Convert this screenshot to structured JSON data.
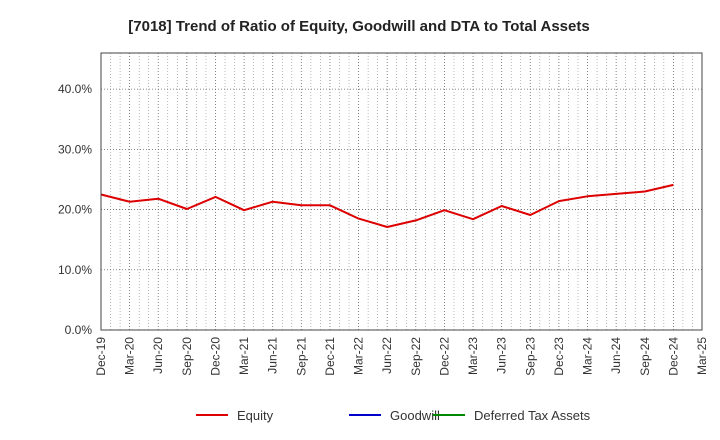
{
  "chart_data": {
    "type": "line",
    "title": "[7018]  Trend of Ratio of Equity, Goodwill and DTA to Total Assets",
    "xlabel": "",
    "ylabel": "",
    "ylim": [
      0,
      46
    ],
    "y_ticks": [
      0,
      10,
      20,
      30,
      40
    ],
    "y_tick_labels": [
      "0.0%",
      "10.0%",
      "20.0%",
      "30.0%",
      "40.0%"
    ],
    "grid": true,
    "legend_position": "bottom",
    "categories": [
      "Dec-19",
      "Mar-20",
      "Jun-20",
      "Sep-20",
      "Dec-20",
      "Mar-21",
      "Jun-21",
      "Sep-21",
      "Dec-21",
      "Mar-22",
      "Jun-22",
      "Sep-22",
      "Dec-22",
      "Mar-23",
      "Jun-23",
      "Sep-23",
      "Dec-23",
      "Mar-24",
      "Jun-24",
      "Sep-24",
      "Dec-24",
      "Mar-25"
    ],
    "series": [
      {
        "name": "Equity",
        "color": "#dd0000",
        "values": [
          22.5,
          21.3,
          21.8,
          20.1,
          22.1,
          19.9,
          21.3,
          20.7,
          20.7,
          18.5,
          17.1,
          18.2,
          19.9,
          18.4,
          20.6,
          19.1,
          21.4,
          22.2,
          22.6,
          23.0,
          24.1,
          null
        ]
      },
      {
        "name": "Goodwill",
        "color": "#0000cc",
        "values": [
          null,
          null,
          null,
          null,
          null,
          null,
          null,
          null,
          null,
          null,
          null,
          null,
          null,
          null,
          null,
          null,
          null,
          null,
          null,
          null,
          null,
          null
        ]
      },
      {
        "name": "Deferred Tax Assets",
        "color": "#008800",
        "values": [
          null,
          null,
          null,
          null,
          null,
          null,
          null,
          null,
          null,
          null,
          null,
          null,
          null,
          null,
          null,
          null,
          null,
          null,
          null,
          null,
          null,
          null
        ]
      }
    ]
  }
}
